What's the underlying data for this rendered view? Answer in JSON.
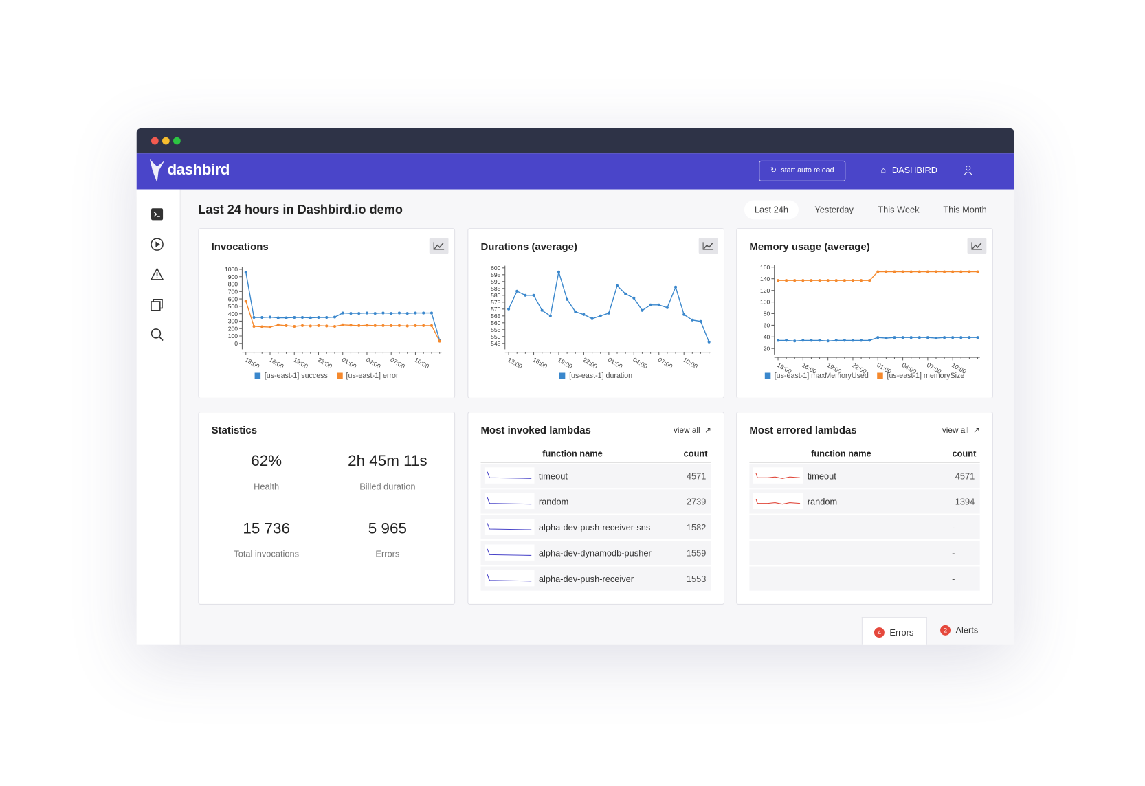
{
  "window": {
    "brand": "dashbird",
    "reload_button": "start auto reload",
    "account": "DASHBIRD"
  },
  "page": {
    "title": "Last 24 hours in Dashbird.io demo",
    "ranges": [
      "Last 24h",
      "Yesterday",
      "This Week",
      "This Month"
    ],
    "active_range": 0
  },
  "chart_data": [
    {
      "type": "line",
      "title": "Invocations",
      "categories": [
        "13:00",
        null,
        null,
        "16:00",
        null,
        null,
        "19:00",
        null,
        null,
        "22:00",
        null,
        null,
        "01:00",
        null,
        null,
        "04:00",
        null,
        null,
        "07:00",
        null,
        null,
        "10:00",
        null,
        null,
        null
      ],
      "series": [
        {
          "name": "[us-east-1] success",
          "color": "#3a87cc",
          "values": [
            960,
            350,
            350,
            355,
            345,
            345,
            350,
            350,
            345,
            350,
            350,
            355,
            410,
            405,
            405,
            410,
            405,
            410,
            405,
            410,
            405,
            410,
            410,
            410,
            40
          ]
        },
        {
          "name": "[us-east-1] error",
          "color": "#f5892d",
          "values": [
            570,
            230,
            225,
            220,
            250,
            240,
            230,
            240,
            235,
            240,
            235,
            230,
            250,
            245,
            240,
            245,
            240,
            240,
            240,
            240,
            235,
            240,
            240,
            240,
            30
          ]
        }
      ],
      "ylim": [
        0,
        1000
      ],
      "yticks": [
        0,
        100,
        200,
        300,
        400,
        500,
        600,
        700,
        800,
        900,
        1000
      ],
      "grid": false
    },
    {
      "type": "line",
      "title": "Durations (average)",
      "categories": [
        "13:00",
        null,
        null,
        "16:00",
        null,
        null,
        "19:00",
        null,
        null,
        "22:00",
        null,
        null,
        "01:00",
        null,
        null,
        "04:00",
        null,
        null,
        "07:00",
        null,
        null,
        "10:00",
        null,
        null,
        null
      ],
      "series": [
        {
          "name": "[us-east-1] duration",
          "color": "#3a87cc",
          "values": [
            570,
            583,
            580,
            580,
            569,
            565,
            597,
            577,
            568,
            566,
            563,
            565,
            567,
            587,
            581,
            578,
            569,
            573,
            573,
            571,
            586,
            566,
            562,
            561,
            546
          ]
        }
      ],
      "ylim": [
        545,
        600
      ],
      "yticks": [
        545,
        550,
        555,
        560,
        565,
        570,
        575,
        580,
        585,
        590,
        595,
        600
      ],
      "grid": false
    },
    {
      "type": "line",
      "title": "Memory usage (average)",
      "categories": [
        "13:00",
        null,
        null,
        "16:00",
        null,
        null,
        "19:00",
        null,
        null,
        "22:00",
        null,
        null,
        "01:00",
        null,
        null,
        "04:00",
        null,
        null,
        "07:00",
        null,
        null,
        "10:00",
        null,
        null,
        null
      ],
      "series": [
        {
          "name": "[us-east-1] maxMemoryUsed",
          "color": "#3a87cc",
          "values": [
            34,
            34,
            33,
            34,
            34,
            34,
            33,
            34,
            34,
            34,
            34,
            34,
            39,
            38,
            39,
            39,
            39,
            39,
            39,
            38,
            39,
            39,
            39,
            39,
            39
          ]
        },
        {
          "name": "[us-east-1] memorySize",
          "color": "#f5892d",
          "values": [
            137,
            137,
            137,
            137,
            137,
            137,
            137,
            137,
            137,
            137,
            137,
            137,
            152,
            152,
            152,
            152,
            152,
            152,
            152,
            152,
            152,
            152,
            152,
            152,
            152
          ]
        }
      ],
      "ylim": [
        20,
        160
      ],
      "yticks": [
        20,
        40,
        60,
        80,
        100,
        120,
        140,
        160
      ],
      "grid": false
    }
  ],
  "statistics": {
    "title": "Statistics",
    "items": [
      {
        "value": "62%",
        "label": "Health"
      },
      {
        "value": "2h 45m 11s",
        "label": "Billed duration"
      },
      {
        "value": "15 736",
        "label": "Total invocations"
      },
      {
        "value": "5 965",
        "label": "Errors"
      }
    ]
  },
  "tables": [
    {
      "title": "Most invoked lambdas",
      "link": "view all",
      "columns": [
        "function name",
        "count"
      ],
      "spark_color": "#4a45c9",
      "rows": [
        [
          "timeout",
          4571
        ],
        [
          "random",
          2739
        ],
        [
          "alpha-dev-push-receiver-sns",
          1582
        ],
        [
          "alpha-dev-dynamodb-pusher",
          1559
        ],
        [
          "alpha-dev-push-receiver",
          1553
        ]
      ]
    },
    {
      "title": "Most errored lambdas",
      "link": "view all",
      "columns": [
        "function name",
        "count"
      ],
      "spark_color": "#e0473a",
      "rows": [
        [
          "timeout",
          4571
        ],
        [
          "random",
          1394
        ],
        [
          null,
          "-"
        ],
        [
          null,
          "-"
        ],
        [
          null,
          "-"
        ]
      ]
    }
  ],
  "footer_tabs": [
    {
      "count": 4,
      "label": "Errors"
    },
    {
      "count": 2,
      "label": "Alerts"
    }
  ]
}
